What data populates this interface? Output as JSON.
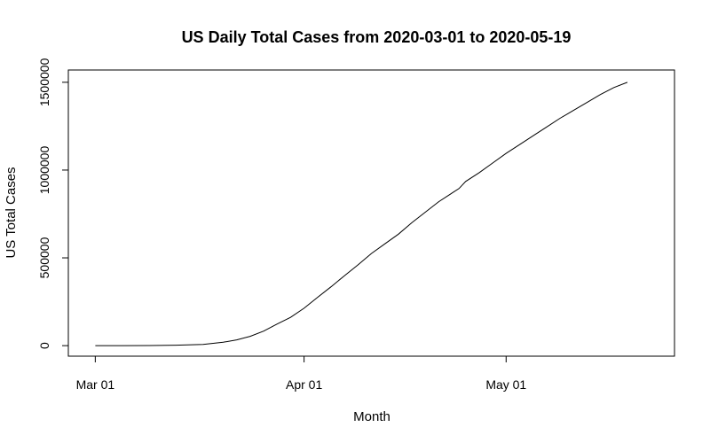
{
  "chart_data": {
    "type": "line",
    "title": "US Daily Total Cases from 2020-03-01 to 2020-05-19",
    "xlabel": "Month",
    "ylabel": "US Total Cases",
    "x_range": [
      "2020-02-26",
      "2020-05-26"
    ],
    "ylim": [
      -60000,
      1570000
    ],
    "x_ticks": [
      {
        "date": "2020-03-01",
        "label": "Mar 01"
      },
      {
        "date": "2020-04-01",
        "label": "Apr 01"
      },
      {
        "date": "2020-05-01",
        "label": "May 01"
      }
    ],
    "y_ticks": [
      {
        "value": 0,
        "label": "0"
      },
      {
        "value": 500000,
        "label": "500000"
      },
      {
        "value": 1000000,
        "label": "1000000"
      },
      {
        "value": 1500000,
        "label": "1500000"
      }
    ],
    "grid": false,
    "legend": "none",
    "series": [
      {
        "color": "#000000",
        "points": [
          {
            "x": "2020-03-01",
            "y": 70
          },
          {
            "x": "2020-03-05",
            "y": 230
          },
          {
            "x": "2020-03-09",
            "y": 700
          },
          {
            "x": "2020-03-13",
            "y": 2700
          },
          {
            "x": "2020-03-17",
            "y": 6500
          },
          {
            "x": "2020-03-20",
            "y": 19000
          },
          {
            "x": "2020-03-22",
            "y": 33000
          },
          {
            "x": "2020-03-24",
            "y": 53000
          },
          {
            "x": "2020-03-26",
            "y": 83000
          },
          {
            "x": "2020-03-28",
            "y": 123000
          },
          {
            "x": "2020-03-30",
            "y": 161000
          },
          {
            "x": "2020-04-01",
            "y": 213000
          },
          {
            "x": "2020-04-03",
            "y": 275000
          },
          {
            "x": "2020-04-05",
            "y": 335000
          },
          {
            "x": "2020-04-07",
            "y": 398000
          },
          {
            "x": "2020-04-09",
            "y": 460000
          },
          {
            "x": "2020-04-11",
            "y": 525000
          },
          {
            "x": "2020-04-13",
            "y": 580000
          },
          {
            "x": "2020-04-15",
            "y": 635000
          },
          {
            "x": "2020-04-17",
            "y": 700000
          },
          {
            "x": "2020-04-19",
            "y": 760000
          },
          {
            "x": "2020-04-21",
            "y": 820000
          },
          {
            "x": "2020-04-23",
            "y": 870000
          },
          {
            "x": "2020-04-24",
            "y": 895000
          },
          {
            "x": "2020-04-25",
            "y": 935000
          },
          {
            "x": "2020-04-27",
            "y": 985000
          },
          {
            "x": "2020-04-29",
            "y": 1040000
          },
          {
            "x": "2020-05-01",
            "y": 1095000
          },
          {
            "x": "2020-05-03",
            "y": 1145000
          },
          {
            "x": "2020-05-05",
            "y": 1195000
          },
          {
            "x": "2020-05-07",
            "y": 1245000
          },
          {
            "x": "2020-05-09",
            "y": 1295000
          },
          {
            "x": "2020-05-11",
            "y": 1340000
          },
          {
            "x": "2020-05-13",
            "y": 1385000
          },
          {
            "x": "2020-05-15",
            "y": 1430000
          },
          {
            "x": "2020-05-17",
            "y": 1470000
          },
          {
            "x": "2020-05-19",
            "y": 1500000
          }
        ]
      }
    ]
  }
}
